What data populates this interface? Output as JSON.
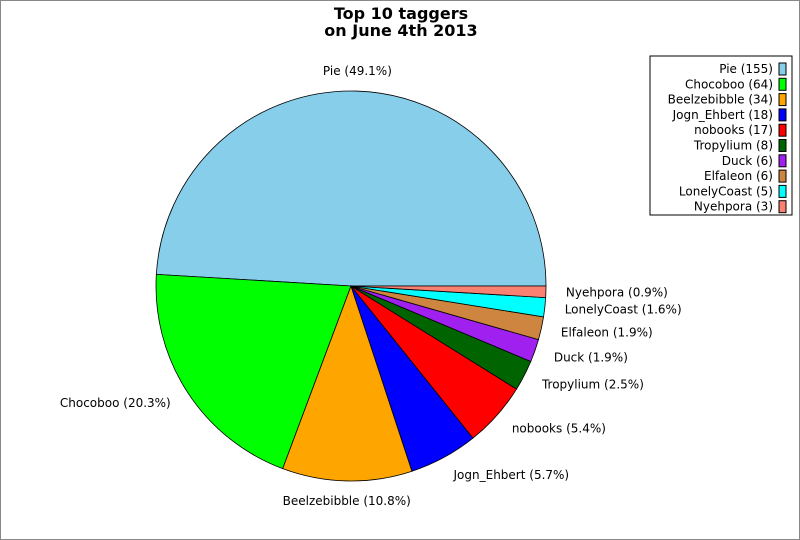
{
  "chart_data": {
    "type": "pie",
    "title_lines": [
      "Top 10 taggers",
      "on June 4th 2013"
    ],
    "start_angle": "east, counterclockwise",
    "legend_placement": "top-right",
    "slices": [
      {
        "name": "Pie",
        "value": 155,
        "percent_label": "Pie (49.1%)",
        "legend_label": "Pie (155)",
        "color": "#87CEEB"
      },
      {
        "name": "Chocoboo",
        "value": 64,
        "percent_label": "Chocoboo (20.3%)",
        "legend_label": "Chocoboo (64)",
        "color": "#00FF00"
      },
      {
        "name": "Beelzebibble",
        "value": 34,
        "percent_label": "Beelzebibble (10.8%)",
        "legend_label": "Beelzebibble (34)",
        "color": "#FFA500"
      },
      {
        "name": "Jogn_Ehbert",
        "value": 18,
        "percent_label": "Jogn_Ehbert (5.7%)",
        "legend_label": "Jogn_Ehbert (18)",
        "color": "#0000FF"
      },
      {
        "name": "nobooks",
        "value": 17,
        "percent_label": "nobooks (5.4%)",
        "legend_label": "nobooks (17)",
        "color": "#FF0000"
      },
      {
        "name": "Tropylium",
        "value": 8,
        "percent_label": "Tropylium (2.5%)",
        "legend_label": "Tropylium (8)",
        "color": "#006400"
      },
      {
        "name": "Duck",
        "value": 6,
        "percent_label": "Duck (1.9%)",
        "legend_label": "Duck (6)",
        "color": "#A020F0"
      },
      {
        "name": "Elfaleon",
        "value": 6,
        "percent_label": "Elfaleon (1.9%)",
        "legend_label": "Elfaleon (6)",
        "color": "#CD853F"
      },
      {
        "name": "LonelyCoast",
        "value": 5,
        "percent_label": "LonelyCoast (1.6%)",
        "legend_label": "LonelyCoast (5)",
        "color": "#00FFFF"
      },
      {
        "name": "Nyehpora",
        "value": 3,
        "percent_label": "Nyehpora (0.9%)",
        "legend_label": "Nyehpora (3)",
        "color": "#FA8072"
      }
    ]
  }
}
